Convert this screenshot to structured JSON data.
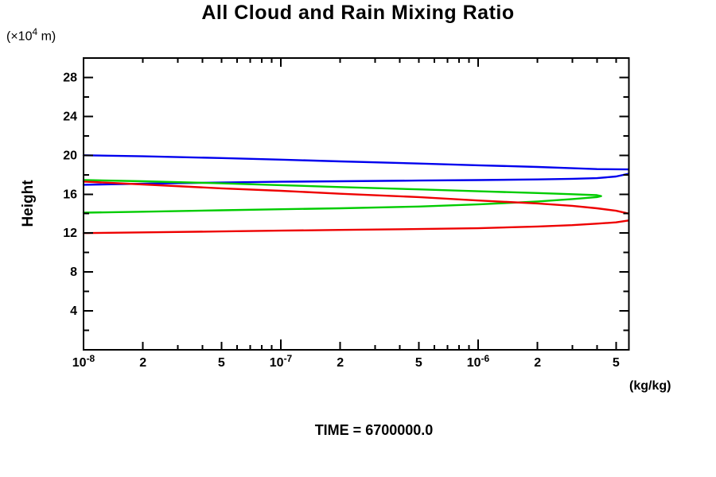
{
  "header": {
    "title": "All Cloud and Rain Mixing Ratio"
  },
  "footer": {
    "time_label": "TIME = 6700000.0"
  },
  "y_unit_parts": {
    "pre": "(×10",
    "sup": "4",
    "post": " m)"
  },
  "chart_data": {
    "type": "line",
    "title": "All Cloud and Rain Mixing Ratio",
    "xlabel": "(kg/kg)",
    "ylabel": "Height",
    "y_unit": "(×10⁴ m)",
    "time": "TIME = 6700000.0",
    "x_scale": "log",
    "xlim": [
      1e-08,
      5.8e-06
    ],
    "ylim": [
      0,
      30
    ],
    "grid": false,
    "legend": false,
    "x_ticks": [
      {
        "v": 1e-08,
        "k": "d",
        "label": {
          "t": "10",
          "s": "-8"
        }
      },
      {
        "v": 2e-08,
        "k": "l",
        "label": "2"
      },
      {
        "v": 3e-08,
        "k": "m"
      },
      {
        "v": 4e-08,
        "k": "m"
      },
      {
        "v": 5e-08,
        "k": "l",
        "label": "5"
      },
      {
        "v": 6e-08,
        "k": "m"
      },
      {
        "v": 7e-08,
        "k": "m"
      },
      {
        "v": 8e-08,
        "k": "m"
      },
      {
        "v": 9e-08,
        "k": "m"
      },
      {
        "v": 1e-07,
        "k": "d",
        "label": {
          "t": "10",
          "s": "-7"
        }
      },
      {
        "v": 2e-07,
        "k": "l",
        "label": "2"
      },
      {
        "v": 3e-07,
        "k": "m"
      },
      {
        "v": 4e-07,
        "k": "m"
      },
      {
        "v": 5e-07,
        "k": "l",
        "label": "5"
      },
      {
        "v": 6e-07,
        "k": "m"
      },
      {
        "v": 7e-07,
        "k": "m"
      },
      {
        "v": 8e-07,
        "k": "m"
      },
      {
        "v": 9e-07,
        "k": "m"
      },
      {
        "v": 1e-06,
        "k": "d",
        "label": {
          "t": "10",
          "s": "-6"
        }
      },
      {
        "v": 2e-06,
        "k": "l",
        "label": "2"
      },
      {
        "v": 3e-06,
        "k": "m"
      },
      {
        "v": 4e-06,
        "k": "m"
      },
      {
        "v": 5e-06,
        "k": "l",
        "label": "5"
      }
    ],
    "y_ticks": [
      2,
      4,
      6,
      8,
      10,
      12,
      14,
      16,
      18,
      20,
      22,
      24,
      26,
      28
    ],
    "y_labeled_ticks": [
      4,
      8,
      12,
      16,
      20,
      24,
      28
    ],
    "series": [
      {
        "name": "blue-series",
        "color": "#0000EE",
        "segments": [
          [
            [
              1e-08,
              20.0
            ],
            [
              2e-08,
              19.9
            ],
            [
              5e-08,
              19.72
            ],
            [
              1e-07,
              19.55
            ],
            [
              2e-07,
              19.37
            ],
            [
              5e-07,
              19.15
            ],
            [
              1e-06,
              18.97
            ],
            [
              2e-06,
              18.8
            ],
            [
              3e-06,
              18.67
            ],
            [
              4e-06,
              18.58
            ],
            [
              5e-06,
              18.56
            ],
            [
              5.8e-06,
              18.55
            ]
          ],
          [
            [
              5.8e-06,
              18.1
            ],
            [
              5e-06,
              17.82
            ],
            [
              4e-06,
              17.65
            ],
            [
              3e-06,
              17.58
            ],
            [
              2e-06,
              17.52
            ],
            [
              1e-06,
              17.45
            ],
            [
              5e-07,
              17.4
            ],
            [
              2e-07,
              17.33
            ],
            [
              1e-07,
              17.28
            ],
            [
              5e-08,
              17.2
            ],
            [
              2e-08,
              17.08
            ],
            [
              1e-08,
              16.97
            ]
          ]
        ]
      },
      {
        "name": "green-series",
        "color": "#00CC00",
        "segments": [
          [
            [
              1e-08,
              14.1
            ],
            [
              2e-08,
              14.2
            ],
            [
              5e-08,
              14.35
            ],
            [
              1e-07,
              14.45
            ],
            [
              2e-07,
              14.55
            ],
            [
              5e-07,
              14.73
            ],
            [
              1e-06,
              14.95
            ],
            [
              2e-06,
              15.25
            ],
            [
              3e-06,
              15.5
            ],
            [
              4e-06,
              15.7
            ],
            [
              4.2e-06,
              15.8
            ],
            [
              4e-06,
              15.9
            ],
            [
              3e-06,
              16.0
            ],
            [
              2e-06,
              16.12
            ],
            [
              1e-06,
              16.3
            ],
            [
              5e-07,
              16.5
            ],
            [
              2e-07,
              16.73
            ],
            [
              1e-07,
              16.93
            ],
            [
              5e-08,
              17.12
            ],
            [
              2e-08,
              17.33
            ],
            [
              1e-08,
              17.45
            ]
          ]
        ]
      },
      {
        "name": "red-series",
        "color": "#EE0000",
        "segments": [
          [
            [
              1e-08,
              12.0
            ],
            [
              2e-08,
              12.07
            ],
            [
              5e-08,
              12.17
            ],
            [
              1e-07,
              12.25
            ],
            [
              2e-07,
              12.33
            ],
            [
              5e-07,
              12.42
            ],
            [
              1e-06,
              12.5
            ],
            [
              2e-06,
              12.68
            ],
            [
              3e-06,
              12.82
            ],
            [
              4e-06,
              12.97
            ],
            [
              5e-06,
              13.1
            ],
            [
              5.8e-06,
              13.3
            ]
          ],
          [
            [
              5.8e-06,
              14.0
            ],
            [
              5e-06,
              14.3
            ],
            [
              4e-06,
              14.55
            ],
            [
              3e-06,
              14.8
            ],
            [
              2e-06,
              15.05
            ],
            [
              1e-06,
              15.35
            ],
            [
              5e-07,
              15.7
            ],
            [
              2e-07,
              16.05
            ],
            [
              1e-07,
              16.35
            ],
            [
              5e-08,
              16.6
            ],
            [
              2e-08,
              17.0
            ],
            [
              1e-08,
              17.3
            ]
          ]
        ]
      }
    ]
  }
}
